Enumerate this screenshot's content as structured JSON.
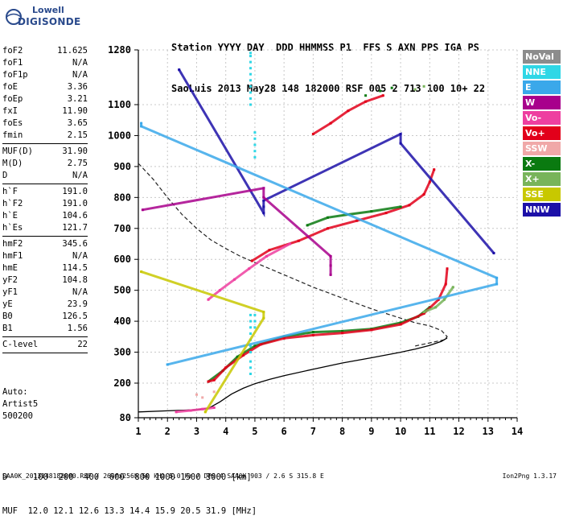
{
  "logo": {
    "line1": "Lowell",
    "line2": "DIGISONDE"
  },
  "header": {
    "line1": "Station YYYY DAY  DDD HHMMSS P1  FFS S AXN PPS IGA PS",
    "line2": "SaoLuis 2013 May28 148 182000 RSF 005 2 713 100 10+ 22"
  },
  "params": {
    "group1": [
      {
        "k": "foF2",
        "v": "11.625"
      },
      {
        "k": "foF1",
        "v": "N/A"
      },
      {
        "k": "foF1p",
        "v": "N/A"
      },
      {
        "k": "foE",
        "v": "3.36"
      },
      {
        "k": "foEp",
        "v": "3.21"
      },
      {
        "k": "fxI",
        "v": "11.90"
      },
      {
        "k": "foEs",
        "v": "3.65"
      },
      {
        "k": "fmin",
        "v": "2.15"
      }
    ],
    "group2": [
      {
        "k": "MUF(D)",
        "v": "31.90"
      },
      {
        "k": "M(D)",
        "v": "2.75"
      },
      {
        "k": "D",
        "v": "N/A"
      }
    ],
    "group3": [
      {
        "k": "h`F",
        "v": "191.0"
      },
      {
        "k": "h`F2",
        "v": "191.0"
      },
      {
        "k": "h`E",
        "v": "104.6"
      },
      {
        "k": "h`Es",
        "v": "121.7"
      }
    ],
    "group4": [
      {
        "k": "hmF2",
        "v": "345.6"
      },
      {
        "k": "hmF1",
        "v": "N/A"
      },
      {
        "k": "hmE",
        "v": "114.5"
      },
      {
        "k": "yF2",
        "v": "104.8"
      },
      {
        "k": "yF1",
        "v": "N/A"
      },
      {
        "k": "yE",
        "v": "23.9"
      },
      {
        "k": "B0",
        "v": "126.5"
      },
      {
        "k": "B1",
        "v": "1.56"
      }
    ],
    "group5": [
      {
        "k": "C-level",
        "v": "22"
      }
    ]
  },
  "auto": {
    "line1": "Auto:",
    "line2": "Artist5",
    "line3": "500200"
  },
  "legend": [
    {
      "label": "NoVal",
      "color": "#8c8c8c"
    },
    {
      "label": "NNE",
      "color": "#2fd7e6"
    },
    {
      "label": "E",
      "color": "#3aa8ea"
    },
    {
      "label": "W",
      "color": "#a8008c"
    },
    {
      "label": "Vo-",
      "color": "#ee3fa0"
    },
    {
      "label": "Vo+",
      "color": "#e2001a"
    },
    {
      "label": "SSW",
      "color": "#f0a8a8"
    },
    {
      "label": "X-",
      "color": "#0a7a10"
    },
    {
      "label": "X+",
      "color": "#78b45a"
    },
    {
      "label": "SSE",
      "color": "#c8c800"
    },
    {
      "label": "NNW",
      "color": "#1c10a8"
    }
  ],
  "bottom": {
    "line1": "D     100  200  400  600  800 1000 1500 3000 [km]",
    "line2": "MUF  12.0 12.1 12.6 13.3 14.4 15.9 20.5 31.9 [MHz]"
  },
  "footer": {
    "left": "SAA0K_2013148182000.RSF / 260fx256h 50 kHz 5.0 km / DPS-4 SAA0K 903 / 2.6 S 315.8 E",
    "right": "Ion2Png 1.3.17"
  },
  "chart_data": {
    "type": "scatter",
    "xlim": [
      1,
      14
    ],
    "ylim": [
      80,
      1280
    ],
    "x_ticks": [
      "1",
      "2",
      "3",
      "4",
      "5",
      "6",
      "7",
      "8",
      "9",
      "10",
      "11",
      "12",
      "13",
      "14"
    ],
    "y_ticks": [
      "80",
      "200",
      "300",
      "400",
      "500",
      "600",
      "700",
      "800",
      "900",
      "1000",
      "1100",
      "1280"
    ],
    "grid": true,
    "legend_position": "right",
    "series": [
      {
        "name": "X-",
        "color": "#0a7a10",
        "x": [
          3.4,
          3.9,
          4.4,
          5.0,
          6.0,
          7.0,
          8.0,
          9.0,
          10.0,
          10.6,
          11.0
        ],
        "y": [
          205,
          240,
          285,
          320,
          350,
          365,
          368,
          375,
          395,
          415,
          445
        ]
      },
      {
        "name": "Vo+",
        "color": "#e2001a",
        "x": [
          3.4,
          3.6,
          4.0,
          4.6,
          5.2,
          6.0,
          7.0,
          8.0,
          9.0,
          10.0,
          10.8,
          11.3,
          11.55,
          11.6
        ],
        "y": [
          205,
          210,
          250,
          290,
          325,
          345,
          355,
          362,
          372,
          390,
          425,
          470,
          520,
          570
        ]
      },
      {
        "name": "Vo-",
        "color": "#ee3fa0",
        "x": [
          2.3,
          2.8,
          3.2,
          3.6
        ],
        "y": [
          100,
          105,
          110,
          115
        ]
      },
      {
        "name": "X+",
        "color": "#78b45a",
        "x": [
          10.8,
          11.2,
          11.5,
          11.8
        ],
        "y": [
          430,
          445,
          470,
          510
        ]
      },
      {
        "name": "Vo+",
        "color": "#e2001a",
        "x": [
          4.9,
          5.5,
          6.5,
          7.5,
          8.5,
          9.5,
          10.3,
          10.8,
          11.0,
          11.15
        ],
        "y": [
          595,
          630,
          660,
          700,
          725,
          750,
          775,
          810,
          850,
          890
        ]
      },
      {
        "name": "X-",
        "color": "#0a7a10",
        "x": [
          6.8,
          7.5,
          8.2,
          9.0,
          10.0
        ],
        "y": [
          710,
          735,
          745,
          755,
          770
        ]
      },
      {
        "name": "Vo-",
        "color": "#ee3fa0",
        "x": [
          3.4,
          3.8,
          4.3,
          4.8,
          5.4,
          6.2
        ],
        "y": [
          470,
          500,
          535,
          570,
          610,
          650
        ]
      },
      {
        "name": "Vo+",
        "color": "#e2001a",
        "x": [
          7.0,
          7.6,
          8.2,
          8.8,
          9.4
        ],
        "y": [
          1005,
          1040,
          1080,
          1110,
          1130
        ]
      },
      {
        "name": "X-",
        "color": "#0a7a10",
        "x": [
          8.8,
          9.3,
          9.7
        ],
        "y": [
          1130,
          1145,
          1155
        ]
      },
      {
        "name": "NNE",
        "color": "#2fd7e6",
        "x": [
          4.85,
          4.85,
          4.85,
          4.85,
          4.85,
          4.85,
          4.85,
          4.85,
          4.85,
          4.85,
          4.85,
          4.85,
          4.85,
          4.85,
          4.85,
          4.85,
          4.85,
          4.85,
          4.85,
          4.85
        ],
        "y": [
          1100,
          1120,
          1140,
          1160,
          1180,
          1200,
          1220,
          1240,
          1260,
          1270,
          230,
          250,
          270,
          300,
          320,
          340,
          360,
          380,
          400,
          420
        ]
      },
      {
        "name": "NNE",
        "color": "#2fd7e6",
        "x": [
          5.0,
          5.0,
          5.0,
          5.0,
          5.0,
          5.0,
          5.0,
          5.0
        ],
        "y": [
          930,
          950,
          970,
          990,
          1010,
          380,
          400,
          420
        ]
      },
      {
        "name": "NNW",
        "color": "#1c10a8",
        "x": [
          2.4,
          5.3,
          5.3,
          5.3,
          10.0,
          10.0,
          13.2
        ],
        "y": [
          1215,
          750,
          770,
          790,
          1005,
          975,
          620
        ]
      },
      {
        "name": "W",
        "color": "#a8008c",
        "x": [
          1.15,
          5.3,
          5.3,
          7.6,
          7.6,
          7.6
        ],
        "y": [
          760,
          830,
          800,
          610,
          580,
          550
        ]
      },
      {
        "name": "E",
        "color": "#3aa8ea",
        "x": [
          1.1,
          1.1,
          13.3,
          13.3,
          2.0
        ],
        "y": [
          1040,
          1030,
          540,
          520,
          260
        ]
      },
      {
        "name": "SSE",
        "color": "#c8c800",
        "x": [
          1.1,
          5.3,
          5.3,
          3.3
        ],
        "y": [
          560,
          430,
          410,
          100
        ]
      },
      {
        "name": "X+",
        "color": "#78b45a",
        "x": [
          10.5,
          10.8
        ],
        "y": [
          1150,
          1160
        ]
      },
      {
        "name": "SSW",
        "color": "#f0a8a8",
        "x": [
          3.0,
          3.2,
          3.6
        ],
        "y": [
          160,
          150,
          170
        ]
      }
    ],
    "profile_curve": {
      "x": [
        1.0,
        2.0,
        3.0,
        3.4,
        3.8,
        4.2,
        4.6,
        5.0,
        5.5,
        6.0,
        7.0,
        8.0,
        9.0,
        10.0,
        10.5,
        11.0,
        11.4,
        11.6
      ],
      "y": [
        100,
        104,
        108,
        112,
        135,
        162,
        182,
        198,
        212,
        224,
        245,
        265,
        282,
        300,
        310,
        322,
        335,
        346
      ]
    },
    "dashed_curve": {
      "x": [
        1.0,
        1.5,
        2.0,
        2.5,
        3.0,
        3.5,
        4.0,
        4.5,
        5.0,
        6.0,
        7.0,
        8.0,
        9.0,
        10.0,
        10.5,
        11.0,
        11.4,
        11.6,
        11.5,
        11.0,
        10.5
      ],
      "y": [
        910,
        860,
        800,
        745,
        700,
        662,
        635,
        610,
        590,
        550,
        510,
        475,
        440,
        410,
        395,
        385,
        370,
        350,
        340,
        330,
        320
      ]
    }
  }
}
